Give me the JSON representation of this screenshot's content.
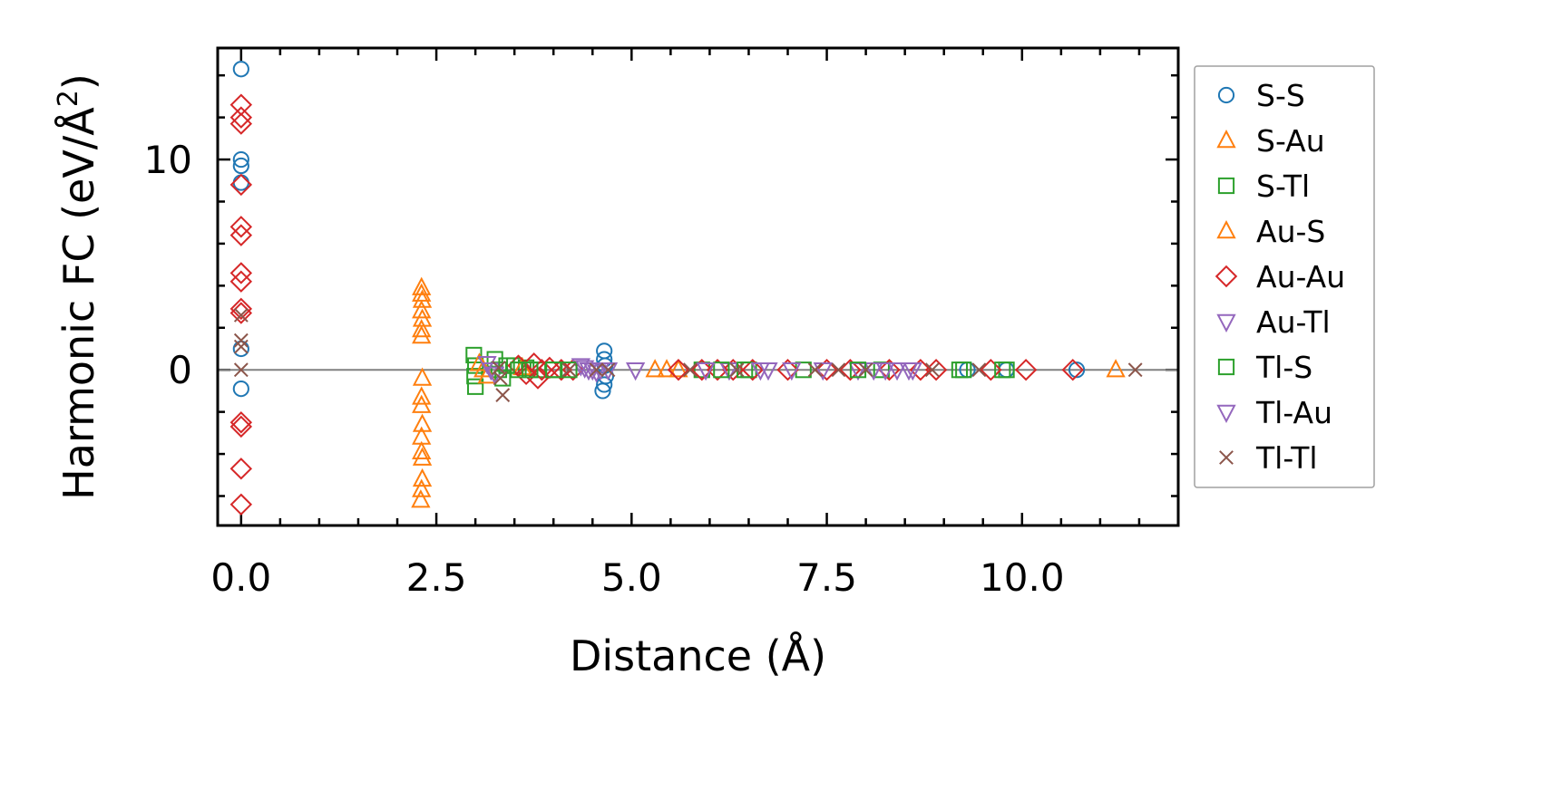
{
  "chart_data": {
    "type": "scatter",
    "xlabel": "Distance (Å)",
    "ylabel": "Harmonic FC (eV/Å²)",
    "ylabel_parts": {
      "base": "Harmonic FC (eV/Å",
      "sup": "2",
      "tail": ")"
    },
    "xlim": [
      -0.3,
      12.0
    ],
    "ylim": [
      -7.4,
      15.3
    ],
    "x_ticks": [
      0.0,
      2.5,
      5.0,
      7.5,
      10.0
    ],
    "x_tick_labels": [
      "0.0",
      "2.5",
      "5.0",
      "7.5",
      "10.0"
    ],
    "y_ticks": [
      0,
      10
    ],
    "y_tick_labels": [
      "0",
      "10"
    ],
    "zero_line": true,
    "grid": false,
    "legend_position": "outside right",
    "series": [
      {
        "name": "S-S",
        "marker": "circle",
        "color": "#1f77b4",
        "points": [
          [
            0,
            14.3
          ],
          [
            0,
            10.0
          ],
          [
            0,
            9.7
          ],
          [
            0,
            8.9
          ],
          [
            0,
            1.0
          ],
          [
            0,
            -0.9
          ],
          [
            4.65,
            0.9
          ],
          [
            4.65,
            0.5
          ],
          [
            4.66,
            0.2
          ],
          [
            4.67,
            -0.3
          ],
          [
            4.65,
            -0.7
          ],
          [
            4.63,
            -1.0
          ],
          [
            9.3,
            0
          ],
          [
            9.8,
            0
          ],
          [
            10.7,
            0
          ]
        ]
      },
      {
        "name": "S-Au",
        "marker": "triangle-up",
        "color": "#ff7f0e",
        "points": [
          [
            2.31,
            3.9
          ],
          [
            2.31,
            3.6
          ],
          [
            2.32,
            3.3
          ],
          [
            2.31,
            2.8
          ],
          [
            2.32,
            2.4
          ],
          [
            2.31,
            1.9
          ],
          [
            2.31,
            1.6
          ],
          [
            2.32,
            -0.4
          ],
          [
            2.31,
            -1.3
          ],
          [
            2.31,
            -1.7
          ],
          [
            2.32,
            -2.6
          ],
          [
            2.31,
            -3.2
          ],
          [
            2.31,
            -3.9
          ],
          [
            2.32,
            -4.2
          ],
          [
            2.32,
            -5.2
          ],
          [
            2.31,
            -5.7
          ],
          [
            2.3,
            -6.2
          ],
          [
            5.3,
            0
          ],
          [
            5.45,
            0
          ],
          [
            5.6,
            0
          ],
          [
            11.2,
            0
          ]
        ]
      },
      {
        "name": "S-Tl",
        "marker": "square",
        "color": "#2ca02c",
        "points": [
          [
            2.98,
            0.7
          ],
          [
            3.0,
            0.2
          ],
          [
            2.99,
            -0.3
          ],
          [
            3.0,
            -0.8
          ],
          [
            3.25,
            0.5
          ],
          [
            3.3,
            0
          ],
          [
            3.35,
            -0.4
          ],
          [
            3.5,
            0.2
          ],
          [
            3.65,
            0.1
          ],
          [
            3.8,
            0
          ],
          [
            4.0,
            0
          ],
          [
            5.9,
            0
          ],
          [
            6.5,
            0
          ],
          [
            7.2,
            0
          ],
          [
            8.2,
            0
          ],
          [
            9.2,
            0
          ],
          [
            9.8,
            0
          ]
        ]
      },
      {
        "name": "Au-S",
        "marker": "triangle-up",
        "color": "#ff7f0e",
        "points": [
          [
            3.05,
            0.3
          ],
          [
            3.1,
            0
          ],
          [
            3.15,
            -0.3
          ],
          [
            3.6,
            0.1
          ]
        ]
      },
      {
        "name": "Au-Au",
        "marker": "diamond",
        "color": "#d62728",
        "points": [
          [
            0,
            12.6
          ],
          [
            0,
            12.0
          ],
          [
            0,
            11.7
          ],
          [
            0,
            8.8
          ],
          [
            0,
            6.8
          ],
          [
            0,
            6.4
          ],
          [
            0,
            4.6
          ],
          [
            0,
            4.2
          ],
          [
            0,
            2.9
          ],
          [
            0,
            2.7
          ],
          [
            0,
            -2.5
          ],
          [
            0,
            -2.7
          ],
          [
            0,
            -4.7
          ],
          [
            0,
            -6.4
          ],
          [
            3.55,
            0.2
          ],
          [
            3.65,
            -0.2
          ],
          [
            3.75,
            0.3
          ],
          [
            3.85,
            0
          ],
          [
            3.95,
            0.1
          ],
          [
            3.8,
            -0.4
          ],
          [
            4.1,
            0
          ],
          [
            4.25,
            0
          ],
          [
            5.6,
            0
          ],
          [
            5.9,
            0
          ],
          [
            6.1,
            0
          ],
          [
            6.3,
            0
          ],
          [
            6.55,
            0
          ],
          [
            7.0,
            0
          ],
          [
            7.5,
            0
          ],
          [
            7.8,
            0
          ],
          [
            8.3,
            0
          ],
          [
            8.7,
            0
          ],
          [
            8.9,
            0
          ],
          [
            9.6,
            0
          ],
          [
            10.05,
            0
          ],
          [
            10.65,
            0
          ]
        ]
      },
      {
        "name": "Au-Tl",
        "marker": "triangle-down",
        "color": "#9467bd",
        "points": [
          [
            3.15,
            0.3
          ],
          [
            3.2,
            0
          ],
          [
            3.25,
            -0.2
          ],
          [
            4.35,
            0.2
          ],
          [
            4.45,
            0
          ],
          [
            4.55,
            -0.1
          ],
          [
            4.7,
            0
          ],
          [
            5.05,
            0
          ],
          [
            6.25,
            0
          ],
          [
            6.75,
            0
          ],
          [
            7.05,
            0
          ],
          [
            7.9,
            0
          ],
          [
            8.1,
            0
          ],
          [
            8.4,
            0
          ],
          [
            8.6,
            0
          ]
        ]
      },
      {
        "name": "Tl-S",
        "marker": "square",
        "color": "#2ca02c",
        "points": [
          [
            3.4,
            0.2
          ],
          [
            3.55,
            0
          ],
          [
            3.7,
            0
          ],
          [
            4.0,
            0
          ],
          [
            4.2,
            0
          ],
          [
            6.15,
            0
          ],
          [
            6.45,
            0
          ],
          [
            7.9,
            0
          ],
          [
            9.25,
            0
          ],
          [
            9.75,
            0
          ]
        ]
      },
      {
        "name": "Tl-Au",
        "marker": "triangle-down",
        "color": "#9467bd",
        "points": [
          [
            4.4,
            0.1
          ],
          [
            4.5,
            0
          ],
          [
            4.6,
            0
          ],
          [
            5.95,
            0
          ],
          [
            6.65,
            0
          ],
          [
            7.45,
            0
          ],
          [
            8.25,
            0
          ],
          [
            8.55,
            0
          ]
        ]
      },
      {
        "name": "Tl-Tl",
        "marker": "x",
        "color": "#8c564b",
        "points": [
          [
            0,
            2.6
          ],
          [
            0,
            1.4
          ],
          [
            0,
            1.1
          ],
          [
            0,
            0
          ],
          [
            3.3,
            0.1
          ],
          [
            3.32,
            -0.4
          ],
          [
            3.35,
            -1.2
          ],
          [
            4.2,
            0
          ],
          [
            4.55,
            0
          ],
          [
            4.7,
            0
          ],
          [
            5.75,
            0
          ],
          [
            6.35,
            0
          ],
          [
            7.35,
            0
          ],
          [
            7.65,
            0
          ],
          [
            8.0,
            0
          ],
          [
            8.85,
            0
          ],
          [
            9.45,
            0
          ],
          [
            11.45,
            0
          ]
        ]
      }
    ]
  }
}
